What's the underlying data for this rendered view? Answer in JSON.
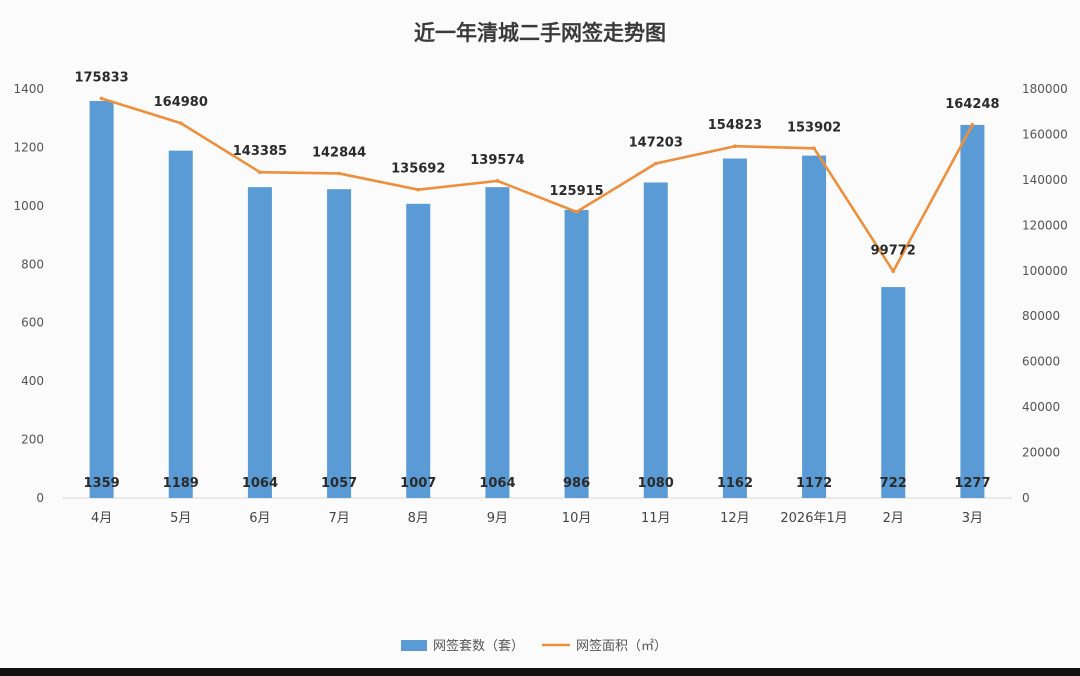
{
  "chart_data": {
    "type": "bar",
    "title": "近一年清城二手网签走势图",
    "categories": [
      "4月",
      "5月",
      "6月",
      "7月",
      "8月",
      "9月",
      "10月",
      "11月",
      "12月",
      "2026年1月",
      "2月",
      "3月"
    ],
    "series": [
      {
        "name": "网签套数（套）",
        "type": "bar",
        "axis": "left",
        "color": "#5b9bd5",
        "values": [
          1359,
          1189,
          1064,
          1057,
          1007,
          1064,
          986,
          1080,
          1162,
          1172,
          722,
          1277
        ]
      },
      {
        "name": "网签面积（㎡）",
        "type": "line",
        "axis": "right",
        "color": "#ed8f3c",
        "values": [
          175833,
          164980,
          143385,
          142844,
          135692,
          139574,
          125915,
          147203,
          154823,
          153902,
          99772,
          164248
        ]
      }
    ],
    "y_left": {
      "min": 0,
      "max": 1400,
      "ticks": [
        0,
        200,
        400,
        600,
        800,
        1000,
        1200,
        1400
      ]
    },
    "y_right": {
      "min": 0,
      "max": 180000,
      "ticks": [
        0,
        20000,
        40000,
        60000,
        80000,
        100000,
        120000,
        140000,
        160000,
        180000
      ]
    },
    "grid": false,
    "legend_position": "bottom"
  },
  "colors": {
    "bar": "#5b9bd5",
    "line": "#ed8f3c",
    "text": "#333333",
    "axis": "#d9d9d9"
  }
}
